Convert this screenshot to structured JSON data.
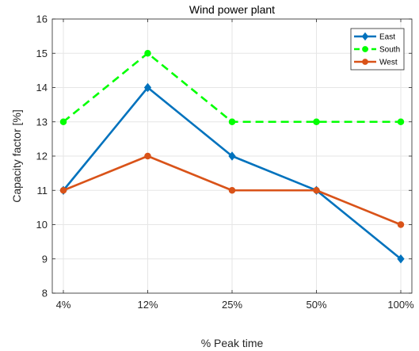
{
  "chart_data": {
    "type": "line",
    "title": "Wind power plant",
    "xlabel": "% Peak time",
    "ylabel": "Capacity factor [%]",
    "categories": [
      "4%",
      "12%",
      "25%",
      "50%",
      "100%"
    ],
    "ylim": [
      8,
      16
    ],
    "yticks": [
      8,
      9,
      10,
      11,
      12,
      13,
      14,
      15,
      16
    ],
    "grid": true,
    "legend_position": "top-right",
    "series": [
      {
        "name": "East",
        "values": [
          11,
          14,
          12,
          11,
          9
        ],
        "color": "#0072BD",
        "marker": "diamond",
        "line_style": "solid"
      },
      {
        "name": "South",
        "values": [
          13,
          15,
          13,
          13,
          13
        ],
        "color": "#00FF00",
        "marker": "circle",
        "line_style": "dashed"
      },
      {
        "name": "West",
        "values": [
          11,
          12,
          11,
          11,
          10
        ],
        "color": "#D95319",
        "marker": "circle",
        "line_style": "solid"
      }
    ]
  }
}
